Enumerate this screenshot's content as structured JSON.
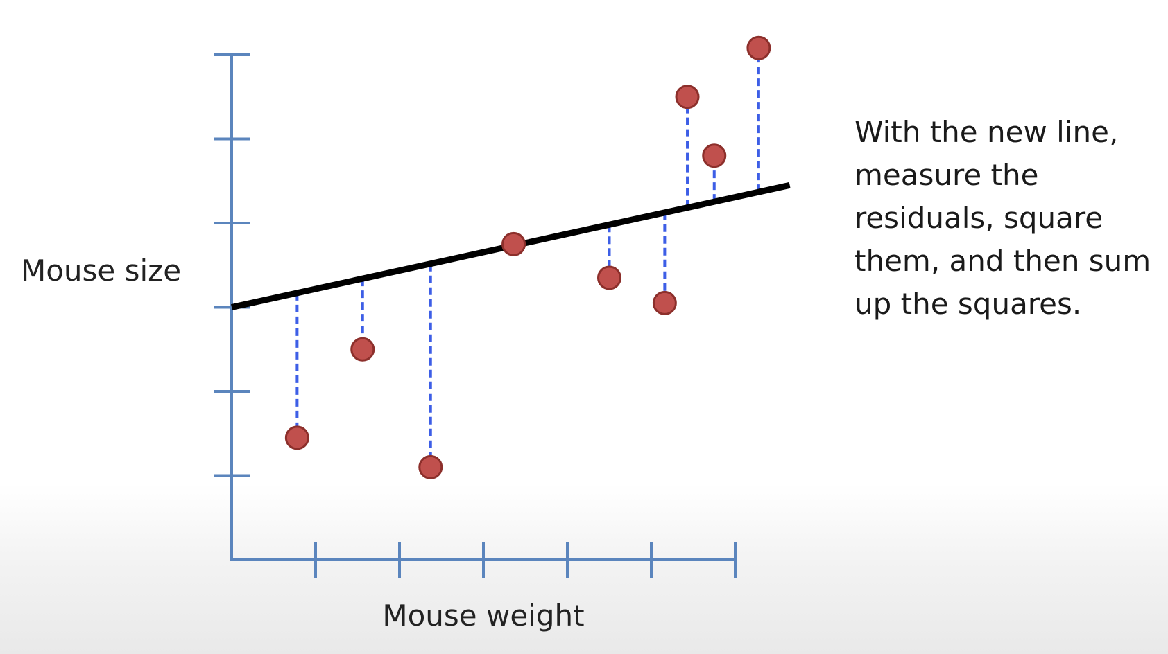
{
  "chart_data": {
    "type": "scatter",
    "title": "",
    "xlabel": "Mouse weight",
    "ylabel": "Mouse size",
    "xlim": [
      0,
      6
    ],
    "ylim": [
      0,
      6
    ],
    "x_ticks": [
      1,
      2,
      3,
      4,
      5,
      6
    ],
    "y_ticks": [
      1,
      2,
      3,
      4,
      5,
      6
    ],
    "tick_labels_shown": false,
    "grid": false,
    "legend": "none",
    "points": [
      {
        "x": 0.78,
        "y": 1.45
      },
      {
        "x": 1.56,
        "y": 2.5
      },
      {
        "x": 2.37,
        "y": 1.1
      },
      {
        "x": 3.36,
        "y": 3.75
      },
      {
        "x": 4.5,
        "y": 3.35
      },
      {
        "x": 5.16,
        "y": 3.05
      },
      {
        "x": 5.43,
        "y": 5.5
      },
      {
        "x": 5.75,
        "y": 4.8
      },
      {
        "x": 6.28,
        "y": 6.08
      }
    ],
    "fit_line": {
      "x_start": 0,
      "y_start": 3.0,
      "x_end": 6.65,
      "y_end": 4.45
    },
    "residuals_shown": true,
    "annotation": "With the new line, measure the residuals, square them, and then sum up the squares.",
    "colors": {
      "axis": "#5b85bd",
      "fit_line": "#000000",
      "residual": "#3d5ee6",
      "point_fill": "#c0504d",
      "point_stroke": "#8c2f2b"
    }
  }
}
